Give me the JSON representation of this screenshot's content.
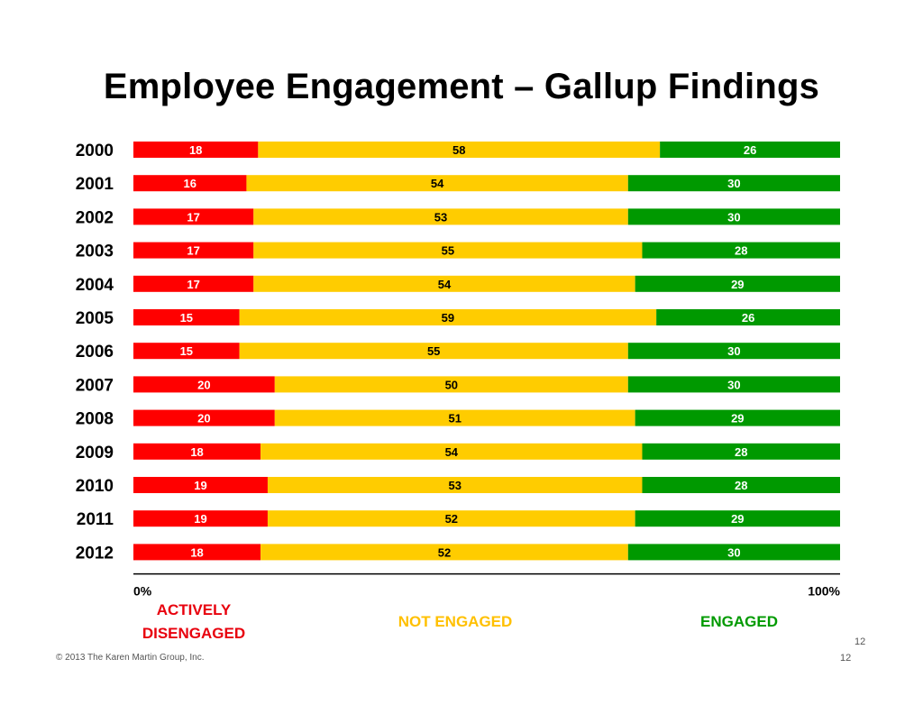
{
  "title": "Employee Engagement – Gallup Findings",
  "legend": {
    "actively_disengaged_line1": "ACTIVELY",
    "actively_disengaged_line2": "DISENGAGED",
    "not_engaged": "NOT ENGAGED",
    "engaged": "ENGAGED"
  },
  "footer": "© 2013 The Karen Martin Group, Inc.",
  "page_number_top": "12",
  "page_number_bottom": "12",
  "colors": {
    "actively_disengaged": "#ff0000",
    "not_engaged": "#ffcc00",
    "engaged": "#009900"
  },
  "chart_data": {
    "type": "bar",
    "orientation": "horizontal",
    "stacked": true,
    "categories": [
      "2000",
      "2001",
      "2002",
      "2003",
      "2004",
      "2005",
      "2006",
      "2007",
      "2008",
      "2009",
      "2010",
      "2011",
      "2012"
    ],
    "series": [
      {
        "name": "ACTIVELY DISENGAGED",
        "values": [
          18,
          16,
          17,
          17,
          17,
          15,
          15,
          20,
          20,
          18,
          19,
          19,
          18
        ]
      },
      {
        "name": "NOT ENGAGED",
        "values": [
          58,
          54,
          53,
          55,
          54,
          59,
          55,
          50,
          51,
          54,
          53,
          52,
          52
        ]
      },
      {
        "name": "ENGAGED",
        "values": [
          26,
          30,
          30,
          28,
          29,
          26,
          30,
          30,
          29,
          28,
          28,
          29,
          30
        ]
      }
    ],
    "xticks": [
      "0%",
      "100%"
    ],
    "xlim": [
      0,
      100
    ],
    "grid": false,
    "legend_position": "bottom"
  }
}
